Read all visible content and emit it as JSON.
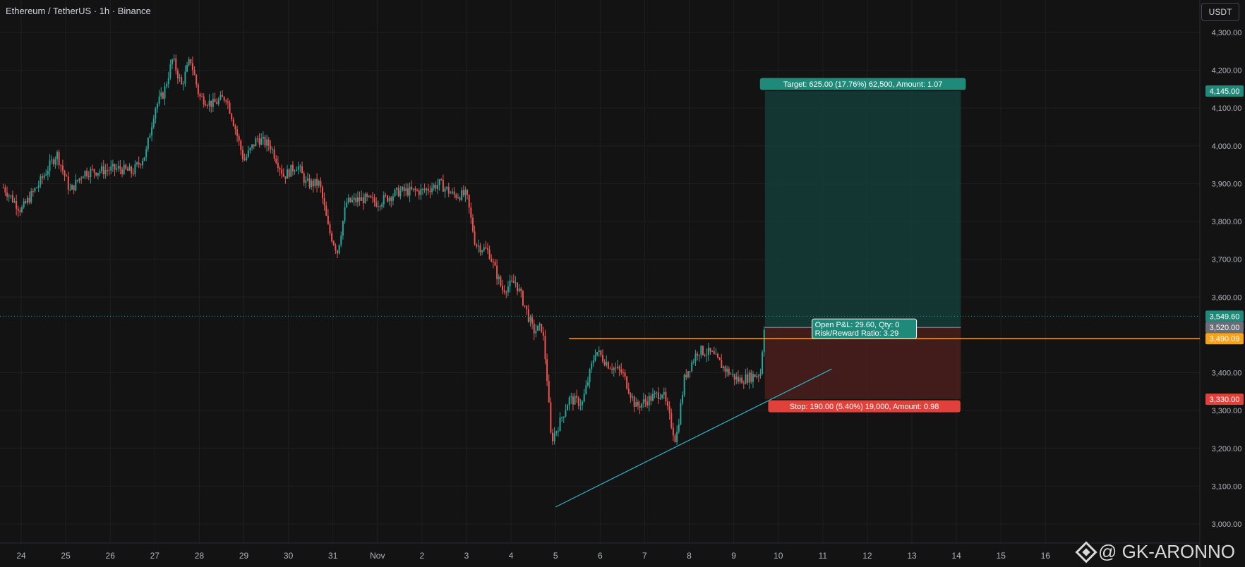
{
  "header": {
    "title": "Ethereum / TetherUS · 1h · Binance"
  },
  "currency_button": "USDT",
  "watermark": "@ GK-ARONNO",
  "colors": {
    "background": "#131313",
    "up": "#26a69a",
    "down": "#ef5350",
    "grid": "#1f1f1f",
    "axis_text": "#b2b5be",
    "orange": "#f7a21b",
    "trend": "#2bb5c6",
    "target_fill": "#14433d",
    "stop_fill": "#4a1f1c"
  },
  "chart_data": {
    "type": "candlestick",
    "title": "Ethereum / TetherUS · 1h · Binance",
    "y_ticks": [
      "4,300.00",
      "4,200.00",
      "4,100.00",
      "4,000.00",
      "3,900.00",
      "3,800.00",
      "3,700.00",
      "3,600.00",
      "3,400.00",
      "3,300.00",
      "3,200.00",
      "3,100.00",
      "3,000.00"
    ],
    "x_ticks": [
      "24",
      "25",
      "26",
      "27",
      "28",
      "29",
      "30",
      "31",
      "Nov",
      "2",
      "3",
      "4",
      "5",
      "6",
      "7",
      "8",
      "9",
      "10",
      "11",
      "12",
      "13",
      "14",
      "15",
      "16"
    ],
    "ylim": [
      2970,
      4340
    ],
    "price_path": [
      {
        "t": 23.6,
        "p": 3890
      },
      {
        "t": 24.0,
        "p": 3830
      },
      {
        "t": 24.4,
        "p": 3900
      },
      {
        "t": 24.8,
        "p": 3980
      },
      {
        "t": 25.1,
        "p": 3880
      },
      {
        "t": 25.4,
        "p": 3930
      },
      {
        "t": 25.8,
        "p": 3935
      },
      {
        "t": 26.2,
        "p": 3940
      },
      {
        "t": 26.5,
        "p": 3930
      },
      {
        "t": 26.8,
        "p": 3980
      },
      {
        "t": 27.0,
        "p": 4100
      },
      {
        "t": 27.2,
        "p": 4140
      },
      {
        "t": 27.4,
        "p": 4230
      },
      {
        "t": 27.6,
        "p": 4160
      },
      {
        "t": 27.8,
        "p": 4230
      },
      {
        "t": 28.0,
        "p": 4130
      },
      {
        "t": 28.3,
        "p": 4110
      },
      {
        "t": 28.6,
        "p": 4130
      },
      {
        "t": 28.8,
        "p": 4050
      },
      {
        "t": 29.0,
        "p": 3960
      },
      {
        "t": 29.3,
        "p": 4020
      },
      {
        "t": 29.6,
        "p": 4000
      },
      {
        "t": 29.9,
        "p": 3920
      },
      {
        "t": 30.2,
        "p": 3950
      },
      {
        "t": 30.4,
        "p": 3900
      },
      {
        "t": 30.7,
        "p": 3900
      },
      {
        "t": 30.9,
        "p": 3780
      },
      {
        "t": 31.1,
        "p": 3720
      },
      {
        "t": 31.3,
        "p": 3850
      },
      {
        "t": 31.7,
        "p": 3860
      },
      {
        "t": 32.0,
        "p": 3850
      },
      {
        "t": 32.5,
        "p": 3880
      },
      {
        "t": 33.0,
        "p": 3880
      },
      {
        "t": 33.4,
        "p": 3900
      },
      {
        "t": 33.7,
        "p": 3870
      },
      {
        "t": 34.0,
        "p": 3870
      },
      {
        "t": 34.2,
        "p": 3740
      },
      {
        "t": 34.5,
        "p": 3720
      },
      {
        "t": 34.8,
        "p": 3620
      },
      {
        "t": 35.1,
        "p": 3640
      },
      {
        "t": 35.3,
        "p": 3580
      },
      {
        "t": 35.5,
        "p": 3510
      },
      {
        "t": 35.7,
        "p": 3520
      },
      {
        "t": 35.8,
        "p": 3400
      },
      {
        "t": 35.9,
        "p": 3220
      },
      {
        "t": 36.1,
        "p": 3270
      },
      {
        "t": 36.3,
        "p": 3330
      },
      {
        "t": 36.6,
        "p": 3320
      },
      {
        "t": 36.9,
        "p": 3460
      },
      {
        "t": 37.2,
        "p": 3420
      },
      {
        "t": 37.5,
        "p": 3400
      },
      {
        "t": 37.8,
        "p": 3310
      },
      {
        "t": 38.1,
        "p": 3330
      },
      {
        "t": 38.4,
        "p": 3350
      },
      {
        "t": 38.7,
        "p": 3220
      },
      {
        "t": 38.9,
        "p": 3390
      },
      {
        "t": 39.2,
        "p": 3460
      },
      {
        "t": 39.5,
        "p": 3450
      },
      {
        "t": 39.8,
        "p": 3410
      },
      {
        "t": 40.1,
        "p": 3380
      },
      {
        "t": 40.4,
        "p": 3390
      },
      {
        "t": 40.6,
        "p": 3400
      },
      {
        "t": 40.7,
        "p": 3549.6
      }
    ],
    "trade_box": {
      "entry": 3520.0,
      "target": 4145.0,
      "stop": 3330.0,
      "target_label": "Target: 625.00 (17.76%) 62,500, Amount: 1.07",
      "stop_label": "Stop: 190.00 (5.40%) 19,000, Amount: 0.98",
      "pnl_label": "Open P&L: 29.60, Qty: 0",
      "rr_label": "Risk/Reward Ratio: 3.29"
    },
    "horizontal_line": {
      "price": 3490.09,
      "color": "#f7a21b"
    },
    "trendline": {
      "from": {
        "t": 36.0,
        "p": 3045
      },
      "to": {
        "t": 42.2,
        "p": 3410
      }
    },
    "price_labels": [
      {
        "text": "4,145.00",
        "price": 4145.0,
        "bg": "#1f8a79"
      },
      {
        "text": "3,549.60",
        "price": 3549.6,
        "bg": "#1f8a79"
      },
      {
        "text": "3,520.00",
        "price": 3520.0,
        "bg": "#6a6d78"
      },
      {
        "text": "3,490.09",
        "price": 3490.09,
        "bg": "#f7a21b"
      },
      {
        "text": "3,330.00",
        "price": 3330.0,
        "bg": "#e0413a"
      }
    ]
  }
}
